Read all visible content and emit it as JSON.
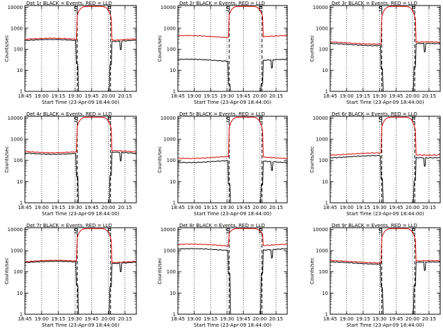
{
  "chart_data": [
    {
      "type": "line",
      "title": "Det 1r BLACK = Events, RED = LLD",
      "xlabel": "Start Time (23-Apr-09 18:44:00)",
      "ylabel": "Counts/sec",
      "yscale": "log",
      "ylim": [
        1,
        12000
      ],
      "xlim_hours": [
        18.75,
        20.42
      ],
      "x_ticks": [
        "18:45",
        "19:00",
        "19:15",
        "19:30",
        "19:45",
        "20:00",
        "20:15"
      ],
      "y_ticks": [
        "1",
        "10",
        "100",
        "1000",
        "10000"
      ],
      "markers": [
        {
          "label": "S",
          "time": "19:32"
        },
        {
          "label": "E",
          "time": "20:02"
        }
      ],
      "series": [
        {
          "name": "Events",
          "color": "#000000",
          "baseline": 260,
          "dip": true
        },
        {
          "name": "LLD",
          "color": "#dd0000",
          "baseline": 300,
          "peak": 10000
        }
      ]
    },
    {
      "type": "line",
      "title": "Det 2r BLACK = Events, RED = LLD",
      "xlabel": "Start Time (23-Apr-09 18:44:00)",
      "ylabel": "Counts/sec",
      "yscale": "log",
      "ylim": [
        1,
        12000
      ],
      "xlim_hours": [
        18.75,
        20.42
      ],
      "x_ticks": [
        "18:45",
        "19:00",
        "19:15",
        "19:30",
        "19:45",
        "20:00",
        "20:15"
      ],
      "y_ticks": [
        "1",
        "10",
        "100",
        "1000",
        "10000"
      ],
      "markers": [
        {
          "label": "S",
          "time": "19:32"
        },
        {
          "label": "E",
          "time": "20:02"
        }
      ],
      "series": [
        {
          "name": "Events",
          "color": "#000000",
          "baseline": 30,
          "dip": true
        },
        {
          "name": "LLD",
          "color": "#dd0000",
          "baseline": 400,
          "peak": 10000
        }
      ]
    },
    {
      "type": "line",
      "title": "Det 3r BLACK = Events, RED = LLD",
      "xlabel": "Start Time (23-Apr-09 18:44:00)",
      "ylabel": "Counts/sec",
      "yscale": "log",
      "ylim": [
        1,
        12000
      ],
      "xlim_hours": [
        18.75,
        20.42
      ],
      "x_ticks": [
        "18:45",
        "19:00",
        "19:15",
        "19:30",
        "19:45",
        "20:00",
        "20:15"
      ],
      "y_ticks": [
        "1",
        "10",
        "100",
        "1000",
        "10000"
      ],
      "markers": [
        {
          "label": "S",
          "time": "19:32"
        },
        {
          "label": "E",
          "time": "20:02"
        }
      ],
      "series": [
        {
          "name": "Events",
          "color": "#000000",
          "baseline": 170,
          "dip": true
        },
        {
          "name": "LLD",
          "color": "#dd0000",
          "baseline": 200,
          "peak": 10000
        }
      ]
    },
    {
      "type": "line",
      "title": "Det 4r BLACK = Events, RED = LLD",
      "xlabel": "Start Time (23-Apr-09 18:44:00)",
      "ylabel": "Counts/sec",
      "yscale": "log",
      "ylim": [
        1,
        12000
      ],
      "xlim_hours": [
        18.75,
        20.42
      ],
      "x_ticks": [
        "18:45",
        "19:00",
        "19:15",
        "19:30",
        "19:45",
        "20:00",
        "20:15"
      ],
      "y_ticks": [
        "1",
        "10",
        "100",
        "1000",
        "10000"
      ],
      "markers": [
        {
          "label": "S",
          "time": "19:32"
        },
        {
          "label": "E",
          "time": "20:02"
        }
      ],
      "series": [
        {
          "name": "Events",
          "color": "#000000",
          "baseline": 220,
          "dip": true
        },
        {
          "name": "LLD",
          "color": "#dd0000",
          "baseline": 260,
          "peak": 10000
        }
      ]
    },
    {
      "type": "line",
      "title": "Det 5r BLACK = Events, RED = LLD",
      "xlabel": "Start Time (23-Apr-09 18:44:00)",
      "ylabel": "Counts/sec",
      "yscale": "log",
      "ylim": [
        1,
        12000
      ],
      "xlim_hours": [
        18.75,
        20.42
      ],
      "x_ticks": [
        "18:45",
        "19:00",
        "19:15",
        "19:30",
        "19:45",
        "20:00",
        "20:15"
      ],
      "y_ticks": [
        "1",
        "10",
        "100",
        "1000",
        "10000"
      ],
      "markers": [
        {
          "label": "S",
          "time": "19:32"
        },
        {
          "label": "E",
          "time": "20:02"
        }
      ],
      "series": [
        {
          "name": "Events",
          "color": "#000000",
          "baseline": 90,
          "dip": true
        },
        {
          "name": "LLD",
          "color": "#dd0000",
          "baseline": 140,
          "peak": 10000
        }
      ]
    },
    {
      "type": "line",
      "title": "Det 6r BLACK = Events, RED = LLD",
      "xlabel": "Start Time (23-Apr-09 18:44:00)",
      "ylabel": "Counts/sec",
      "yscale": "log",
      "ylim": [
        1,
        12000
      ],
      "xlim_hours": [
        18.75,
        20.42
      ],
      "x_ticks": [
        "18:45",
        "19:00",
        "19:15",
        "19:30",
        "19:45",
        "20:00",
        "20:15"
      ],
      "y_ticks": [
        "1",
        "10",
        "100",
        "1000",
        "10000"
      ],
      "markers": [
        {
          "label": "S",
          "time": "19:32"
        },
        {
          "label": "E",
          "time": "20:02"
        }
      ],
      "series": [
        {
          "name": "Events",
          "color": "#000000",
          "baseline": 150,
          "dip": true
        },
        {
          "name": "LLD",
          "color": "#dd0000",
          "baseline": 200,
          "peak": 10000
        }
      ]
    },
    {
      "type": "line",
      "title": "Det 7r BLACK = Events, RED = LLD",
      "xlabel": "Start Time (23-Apr-09 18:44:00)",
      "ylabel": "Counts/sec",
      "yscale": "log",
      "ylim": [
        1,
        12000
      ],
      "xlim_hours": [
        18.75,
        20.42
      ],
      "x_ticks": [
        "18:45",
        "19:00",
        "19:15",
        "19:30",
        "19:45",
        "20:00",
        "20:15"
      ],
      "y_ticks": [
        "1",
        "10",
        "100",
        "1000",
        "10000"
      ],
      "markers": [
        {
          "label": "S",
          "time": "19:32"
        },
        {
          "label": "E",
          "time": "20:02"
        }
      ],
      "series": [
        {
          "name": "Events",
          "color": "#000000",
          "baseline": 280,
          "dip": true
        },
        {
          "name": "LLD",
          "color": "#dd0000",
          "baseline": 310,
          "peak": 10000
        }
      ]
    },
    {
      "type": "line",
      "title": "Det 8r BLACK = Events, RED = LLD",
      "xlabel": "Start Time (23-Apr-09 18:44:00)",
      "ylabel": "Counts/sec",
      "yscale": "log",
      "ylim": [
        1,
        12000
      ],
      "xlim_hours": [
        18.75,
        20.42
      ],
      "x_ticks": [
        "18:45",
        "19:00",
        "19:15",
        "19:30",
        "19:45",
        "20:00",
        "20:15"
      ],
      "y_ticks": [
        "1",
        "10",
        "100",
        "1000",
        "10000"
      ],
      "markers": [
        {
          "label": "S",
          "time": "19:32"
        },
        {
          "label": "E",
          "time": "20:02"
        }
      ],
      "series": [
        {
          "name": "Events",
          "color": "#000000",
          "baseline": 1100,
          "dip": true
        },
        {
          "name": "LLD",
          "color": "#dd0000",
          "baseline": 1800,
          "peak": 10000
        }
      ]
    },
    {
      "type": "line",
      "title": "Det 9r BLACK = Events, RED = LLD",
      "xlabel": "Start Time (23-Apr-09 18:44:00)",
      "ylabel": "Counts/sec",
      "yscale": "log",
      "ylim": [
        1,
        12000
      ],
      "xlim_hours": [
        18.75,
        20.42
      ],
      "x_ticks": [
        "18:45",
        "19:00",
        "19:15",
        "19:30",
        "19:45",
        "20:00",
        "20:15"
      ],
      "y_ticks": [
        "1",
        "10",
        "100",
        "1000",
        "10000"
      ],
      "markers": [
        {
          "label": "S",
          "time": "19:32"
        },
        {
          "label": "E",
          "time": "20:02"
        }
      ],
      "series": [
        {
          "name": "Events",
          "color": "#000000",
          "baseline": 260,
          "dip": true
        },
        {
          "name": "LLD",
          "color": "#dd0000",
          "baseline": 300,
          "peak": 10000
        }
      ]
    }
  ]
}
